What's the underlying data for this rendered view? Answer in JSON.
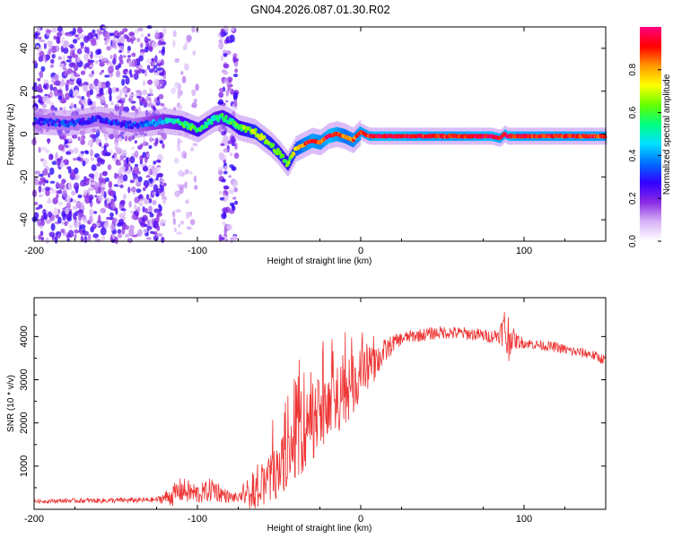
{
  "title": "GN04.2026.087.01.30.R02",
  "colorbar": {
    "label": "Normalized spectral amplitude",
    "ticks": [
      "0.0",
      "0.2",
      "0.4",
      "0.6",
      "0.8"
    ],
    "tick_values": [
      0.0,
      0.2,
      0.4,
      0.6,
      0.8
    ],
    "range": [
      0,
      1
    ],
    "colormap": [
      "#ffffff",
      "#d8b4f8",
      "#8a2be2",
      "#3300ff",
      "#0070ff",
      "#00e0ff",
      "#00ff80",
      "#66ff00",
      "#ffff00",
      "#ff9900",
      "#ff0000",
      "#ff0080"
    ]
  },
  "chart_data": [
    {
      "type": "heatmap",
      "title": "GN04.2026.087.01.30.R02",
      "xlabel": "Height of straight line (km)",
      "ylabel": "Frequency (Hz)",
      "xlim": [
        -200,
        150
      ],
      "ylim": [
        -50,
        50
      ],
      "x_ticks": [
        -200,
        -100,
        0,
        100
      ],
      "x_tick_labels": [
        "-200",
        "-100",
        "0",
        "100"
      ],
      "y_ticks": [
        -40,
        -20,
        0,
        20,
        40
      ],
      "y_tick_labels": [
        "-40",
        "-20",
        "0",
        "20",
        "40"
      ],
      "ridge": {
        "x": [
          -200,
          -180,
          -160,
          -140,
          -120,
          -110,
          -100,
          -90,
          -85,
          -80,
          -75,
          -70,
          -65,
          -60,
          -55,
          -50,
          -45,
          -40,
          -35,
          -30,
          -25,
          -20,
          -15,
          -10,
          -5,
          0,
          5,
          10,
          20,
          40,
          60,
          80,
          85,
          88,
          90,
          95,
          100,
          120,
          150
        ],
        "freq": [
          6,
          5,
          7,
          4,
          6,
          5,
          2,
          7,
          8,
          6,
          3,
          2,
          1,
          -2,
          -5,
          -9,
          -14,
          -7,
          -5,
          -3,
          -4,
          -1,
          0,
          -1,
          -3,
          1,
          -1,
          -1,
          -1,
          -1,
          -1,
          -1,
          -2,
          0,
          -1,
          -1,
          -1,
          -1,
          -1
        ],
        "amplitude": [
          0.3,
          0.3,
          0.3,
          0.3,
          0.45,
          0.55,
          0.6,
          0.5,
          0.55,
          0.55,
          0.6,
          0.65,
          0.7,
          0.7,
          0.65,
          0.65,
          0.6,
          0.75,
          0.85,
          0.9,
          0.85,
          0.95,
          0.9,
          0.8,
          0.85,
          0.9,
          0.9,
          0.95,
          0.95,
          0.9,
          0.9,
          0.95,
          0.9,
          0.95,
          0.95,
          0.9,
          0.9,
          0.9,
          0.9
        ]
      },
      "noise_regions": [
        {
          "x_range": [
            -200,
            -120
          ],
          "freq_range": [
            -50,
            50
          ],
          "amplitude": 0.15
        },
        {
          "x_range": [
            -86,
            -76
          ],
          "freq_range": [
            -50,
            50
          ],
          "amplitude": 0.15
        },
        {
          "x_range": [
            -115,
            -100
          ],
          "freq_range": [
            -50,
            50
          ],
          "amplitude": 0.05
        }
      ]
    },
    {
      "type": "line",
      "xlabel": "Height of straight line (km)",
      "ylabel": "SNR (10 * v/v)",
      "xlim": [
        -200,
        150
      ],
      "ylim": [
        0,
        4900
      ],
      "x_ticks": [
        -200,
        -100,
        0,
        100
      ],
      "x_tick_labels": [
        "-200",
        "-100",
        "0",
        "100"
      ],
      "y_ticks": [
        1000,
        2000,
        3000,
        4000
      ],
      "y_tick_labels": [
        "1000",
        "2000",
        "3000",
        "4000"
      ],
      "series": [
        {
          "name": "SNR",
          "color": "#ee3333",
          "x": [
            -200,
            -180,
            -160,
            -140,
            -125,
            -115,
            -110,
            -100,
            -95,
            -90,
            -85,
            -80,
            -75,
            -70,
            -65,
            -60,
            -55,
            -50,
            -45,
            -40,
            -35,
            -30,
            -25,
            -20,
            -15,
            -10,
            -5,
            0,
            5,
            10,
            15,
            20,
            25,
            30,
            40,
            50,
            60,
            70,
            80,
            85,
            88,
            90,
            92,
            95,
            100,
            110,
            120,
            130,
            140,
            150
          ],
          "values": [
            180,
            200,
            200,
            210,
            220,
            320,
            450,
            350,
            400,
            480,
            350,
            280,
            260,
            220,
            280,
            450,
            700,
            950,
            1200,
            1500,
            1750,
            2000,
            2150,
            2300,
            2500,
            2650,
            2850,
            3100,
            3250,
            3450,
            3650,
            3850,
            3950,
            4000,
            4050,
            4100,
            4080,
            4050,
            4000,
            4050,
            4200,
            3900,
            4000,
            3900,
            3850,
            3800,
            3750,
            3650,
            3600,
            3450
          ],
          "noise_amplitude": [
            40,
            50,
            60,
            60,
            60,
            250,
            300,
            250,
            250,
            300,
            200,
            120,
            120,
            200,
            300,
            500,
            600,
            650,
            700,
            800,
            900,
            900,
            900,
            800,
            800,
            700,
            700,
            600,
            500,
            400,
            300,
            200,
            150,
            150,
            150,
            150,
            150,
            150,
            150,
            200,
            500,
            800,
            300,
            200,
            120,
            120,
            120,
            120,
            120,
            120
          ]
        }
      ]
    }
  ]
}
